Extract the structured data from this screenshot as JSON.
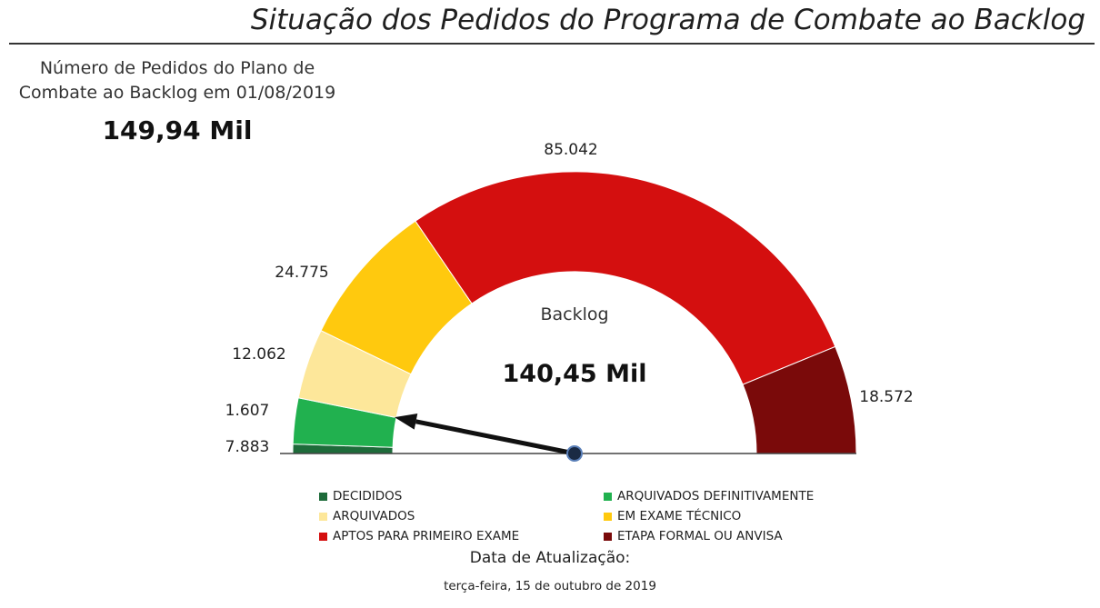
{
  "page": {
    "title": "Situação dos Pedidos do Programa de Combate ao Backlog"
  },
  "kpi": {
    "label_line1": "Número de Pedidos do Plano de",
    "label_line2": "Combate ao Backlog em 01/08/2019",
    "value": "149,94 Mil"
  },
  "chart_data": {
    "type": "gauge",
    "center_label": "Backlog",
    "center_value": "140,45 Mil",
    "needle_value": 9490,
    "segments": [
      {
        "name": "DECIDIDOS",
        "value": 1607,
        "label": "1.607",
        "color": "#1e6b3a"
      },
      {
        "name": "ARQUIVADOS DEFINITIVAMENTE",
        "value": 7883,
        "label": "7.883",
        "color": "#21b14f"
      },
      {
        "name": "ARQUIVADOS",
        "value": 12062,
        "label": "12.062",
        "color": "#fde79a"
      },
      {
        "name": "EM EXAME TÉCNICO",
        "value": 24775,
        "label": "24.775",
        "color": "#ffc90e"
      },
      {
        "name": "APTOS PARA PRIMEIRO EXAME",
        "value": 85042,
        "label": "85.042",
        "color": "#d40f0f"
      },
      {
        "name": "ETAPA FORMAL OU ANVISA",
        "value": 18572,
        "label": "18.572",
        "color": "#7a0a0a"
      }
    ],
    "legend_position": "bottom"
  },
  "legend": {
    "col1": [
      {
        "label": "DECIDIDOS",
        "color": "#1e6b3a"
      },
      {
        "label": "ARQUIVADOS",
        "color": "#fde79a"
      },
      {
        "label": "APTOS PARA PRIMEIRO EXAME",
        "color": "#d40f0f"
      }
    ],
    "col2": [
      {
        "label": "ARQUIVADOS DEFINITIVAMENTE",
        "color": "#21b14f"
      },
      {
        "label": "EM EXAME TÉCNICO",
        "color": "#ffc90e"
      },
      {
        "label": "ETAPA FORMAL OU ANVISA",
        "color": "#7a0a0a"
      }
    ]
  },
  "footer": {
    "update_label": "Data de Atualização:",
    "update_date": "terça-feira, 15 de outubro de 2019"
  }
}
